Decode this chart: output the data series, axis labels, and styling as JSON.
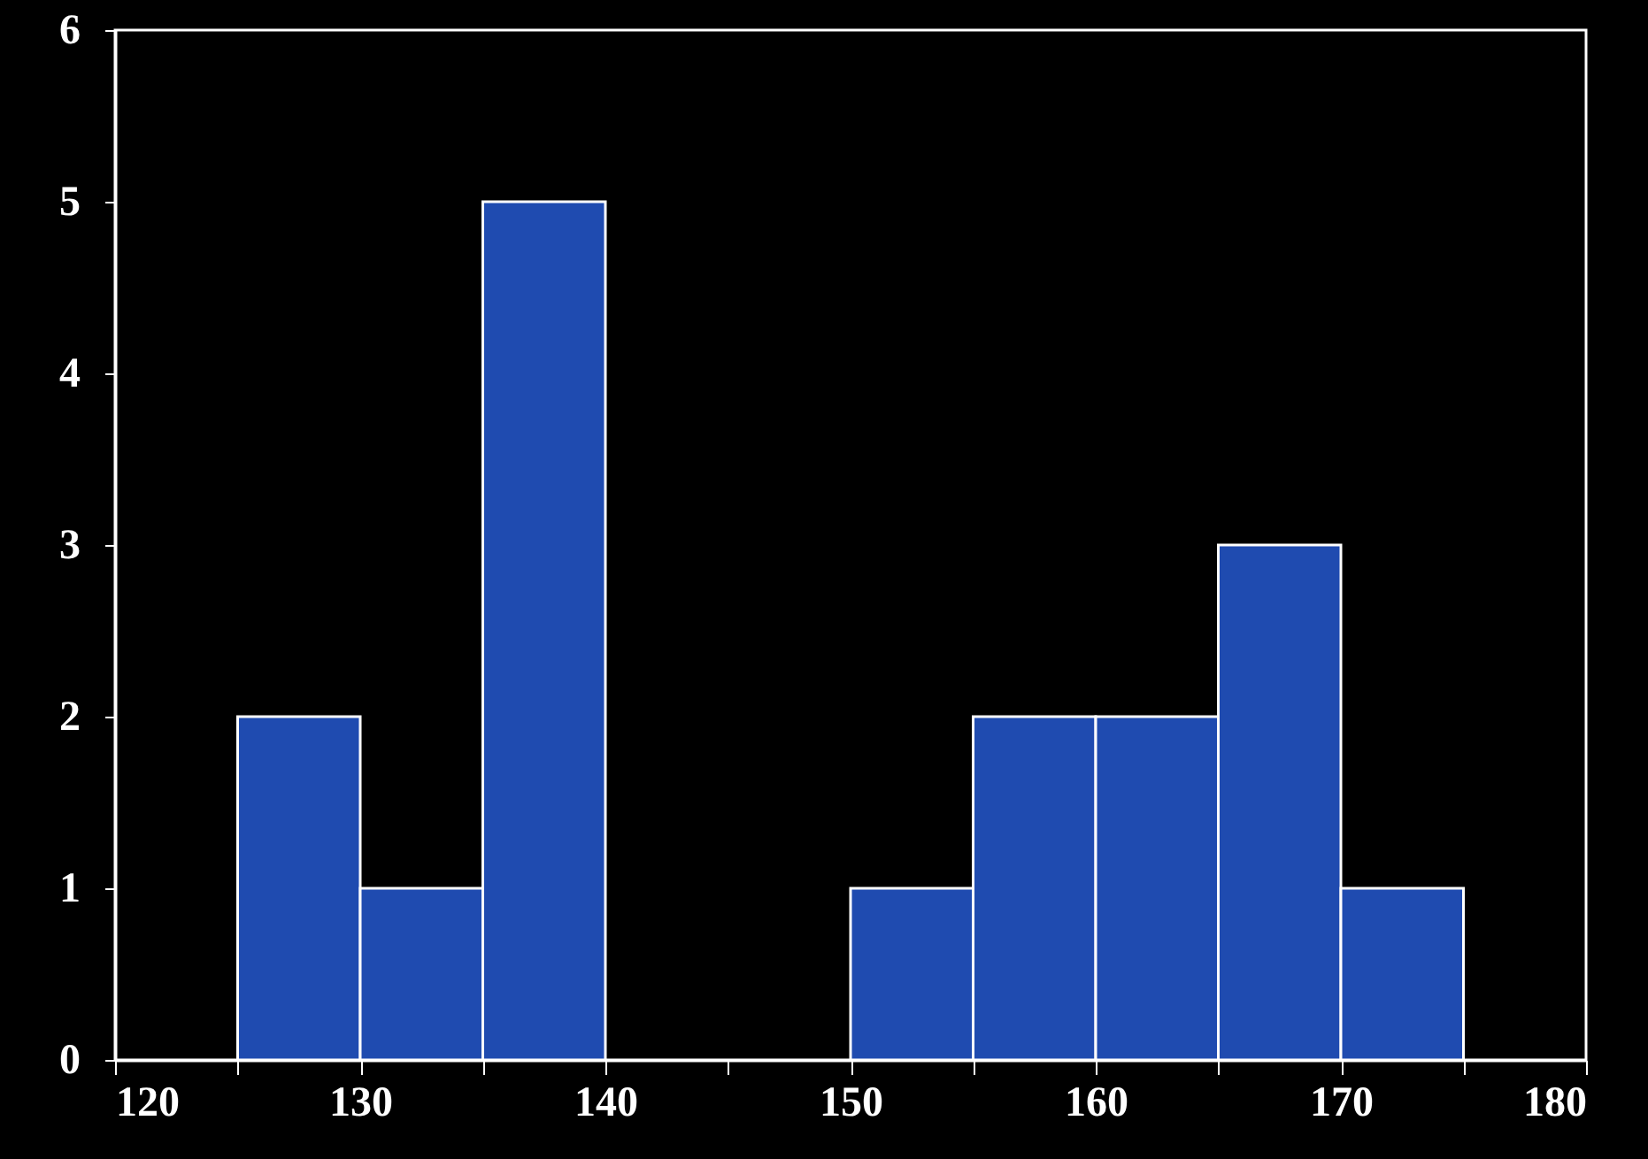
{
  "chart_data": {
    "type": "histogram",
    "bins": [
      125,
      130,
      135,
      140,
      145,
      150,
      155,
      160,
      165,
      170,
      175
    ],
    "values": [
      2,
      1,
      5,
      0,
      0,
      1,
      2,
      2,
      3,
      1
    ],
    "color": "#1f4bb0",
    "xlim": [
      120,
      180
    ],
    "xticks": [
      120,
      {
        "value": 125,
        "label": null
      },
      130,
      {
        "value": 135,
        "label": null
      },
      140,
      {
        "value": 145,
        "label": null
      },
      150,
      {
        "value": 155,
        "label": null
      },
      160,
      {
        "value": 165,
        "label": null
      },
      170,
      {
        "value": 175,
        "label": null
      },
      180
    ],
    "ylim": [
      0,
      6
    ],
    "yticks": [
      0,
      1,
      2,
      3,
      4,
      5,
      6
    ]
  }
}
